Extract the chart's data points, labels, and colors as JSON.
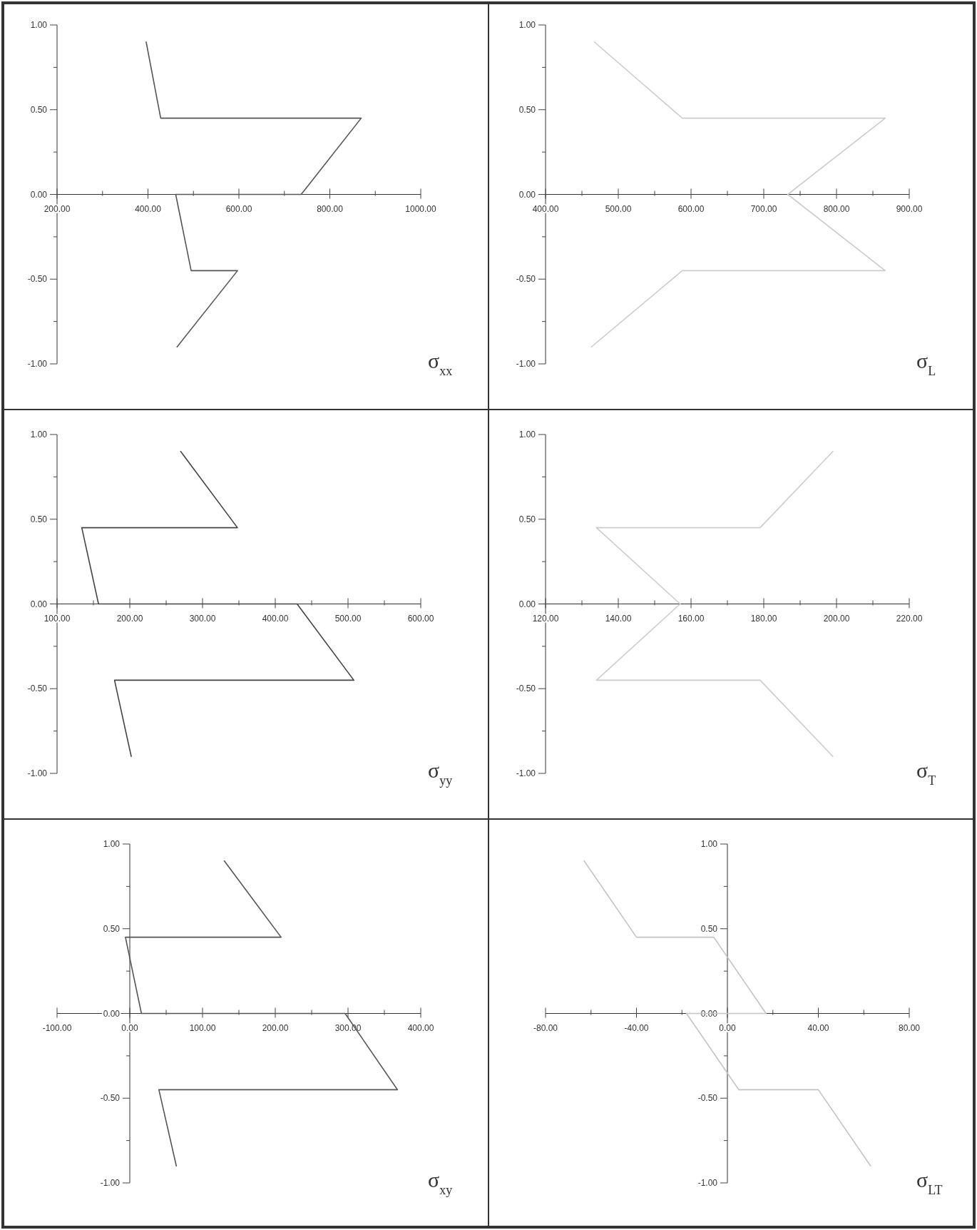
{
  "chart_data": [
    {
      "type": "line",
      "title": "σ$_{xx}$",
      "x": [
        396,
        428,
        869,
        737,
        461,
        495,
        597,
        464
      ],
      "xlim": [
        200,
        1000
      ],
      "xticks": [
        {
          "value": 200,
          "label": "200.00"
        },
        {
          "value": 300,
          "label": null
        },
        {
          "value": 400,
          "label": "400.00"
        },
        {
          "value": 500,
          "label": null
        },
        {
          "value": 600,
          "label": "600.00"
        },
        {
          "value": 700,
          "label": null
        },
        {
          "value": 800,
          "label": "800.00"
        },
        {
          "value": 900,
          "label": null
        },
        {
          "value": 1000,
          "label": "1000.00"
        }
      ],
      "ylim": [
        -1,
        1
      ],
      "yticks": [
        {
          "value": 1,
          "label": "1.00"
        },
        {
          "value": 0.75,
          "label": null
        },
        {
          "value": 0.5,
          "label": "0.50"
        },
        {
          "value": 0.25,
          "label": null
        },
        {
          "value": 0,
          "label": "0.00"
        },
        {
          "value": -0.25,
          "label": null
        },
        {
          "value": -0.5,
          "label": "-0.50"
        },
        {
          "value": -0.75,
          "label": null
        },
        {
          "value": -1,
          "label": "-1.00"
        }
      ],
      "grid": false,
      "series": [
        {
          "color": "#555555",
          "values": [
            0.9,
            0.45,
            0.45,
            0,
            0,
            -0.45,
            -0.45,
            -0.9
          ]
        }
      ]
    },
    {
      "type": "line",
      "title": "σ$_{L}$",
      "x": [
        467,
        588,
        867,
        733,
        733,
        867,
        588,
        463
      ],
      "xlim": [
        400,
        900
      ],
      "xticks": [
        {
          "value": 400,
          "label": "400.00"
        },
        {
          "value": 450,
          "label": null
        },
        {
          "value": 500,
          "label": "500.00"
        },
        {
          "value": 550,
          "label": null
        },
        {
          "value": 600,
          "label": "600.00"
        },
        {
          "value": 650,
          "label": null
        },
        {
          "value": 700,
          "label": "700.00"
        },
        {
          "value": 750,
          "label": null
        },
        {
          "value": 800,
          "label": "800.00"
        },
        {
          "value": 850,
          "label": null
        },
        {
          "value": 900,
          "label": "900.00"
        }
      ],
      "ylim": [
        -1,
        1
      ],
      "yticks": [
        {
          "value": 1,
          "label": "1.00"
        },
        {
          "value": 0.75,
          "label": null
        },
        {
          "value": 0.5,
          "label": "0.50"
        },
        {
          "value": 0.25,
          "label": null
        },
        {
          "value": 0,
          "label": "0.00"
        },
        {
          "value": -0.25,
          "label": null
        },
        {
          "value": -0.5,
          "label": "-0.50"
        },
        {
          "value": -0.75,
          "label": null
        },
        {
          "value": -1,
          "label": "-1.00"
        }
      ],
      "grid": false,
      "series": [
        {
          "color": "#cccccc",
          "values": [
            0.9,
            0.45,
            0.45,
            0,
            0,
            -0.45,
            -0.45,
            -0.9
          ]
        }
      ]
    },
    {
      "type": "line",
      "title": "σ$_{yy}$",
      "x": [
        270,
        348,
        134,
        157,
        430,
        508,
        179,
        202
      ],
      "xlim": [
        100,
        600
      ],
      "xticks": [
        {
          "value": 100,
          "label": "100.00"
        },
        {
          "value": 150,
          "label": null
        },
        {
          "value": 200,
          "label": "200.00"
        },
        {
          "value": 250,
          "label": null
        },
        {
          "value": 300,
          "label": "300.00"
        },
        {
          "value": 350,
          "label": null
        },
        {
          "value": 400,
          "label": "400.00"
        },
        {
          "value": 450,
          "label": null
        },
        {
          "value": 500,
          "label": "500.00"
        },
        {
          "value": 550,
          "label": null
        },
        {
          "value": 600,
          "label": "600.00"
        }
      ],
      "ylim": [
        -1,
        1
      ],
      "yticks": [
        {
          "value": 1,
          "label": "1.00"
        },
        {
          "value": 0.75,
          "label": null
        },
        {
          "value": 0.5,
          "label": "0.50"
        },
        {
          "value": 0.25,
          "label": null
        },
        {
          "value": 0,
          "label": "0.00"
        },
        {
          "value": -0.25,
          "label": null
        },
        {
          "value": -0.5,
          "label": "-0.50"
        },
        {
          "value": -0.75,
          "label": null
        },
        {
          "value": -1,
          "label": "-1.00"
        }
      ],
      "grid": false,
      "series": [
        {
          "color": "#444444",
          "values": [
            0.9,
            0.45,
            0.45,
            0,
            0,
            -0.45,
            -0.45,
            -0.9
          ]
        }
      ]
    },
    {
      "type": "line",
      "title": "σ$_{T}$",
      "x": [
        199,
        179,
        134,
        157,
        157,
        134,
        179,
        199
      ],
      "xlim": [
        120,
        220
      ],
      "xticks": [
        {
          "value": 120,
          "label": "120.00"
        },
        {
          "value": 130,
          "label": null
        },
        {
          "value": 140,
          "label": "140.00"
        },
        {
          "value": 150,
          "label": null
        },
        {
          "value": 160,
          "label": "160.00"
        },
        {
          "value": 170,
          "label": null
        },
        {
          "value": 180,
          "label": "180.00"
        },
        {
          "value": 190,
          "label": null
        },
        {
          "value": 200,
          "label": "200.00"
        },
        {
          "value": 210,
          "label": null
        },
        {
          "value": 220,
          "label": "220.00"
        }
      ],
      "ylim": [
        -1,
        1
      ],
      "yticks": [
        {
          "value": 1,
          "label": "1.00"
        },
        {
          "value": 0.75,
          "label": null
        },
        {
          "value": 0.5,
          "label": "0.50"
        },
        {
          "value": 0.25,
          "label": null
        },
        {
          "value": 0,
          "label": "0.00"
        },
        {
          "value": -0.25,
          "label": null
        },
        {
          "value": -0.5,
          "label": "-0.50"
        },
        {
          "value": -0.75,
          "label": null
        },
        {
          "value": -1,
          "label": "-1.00"
        }
      ],
      "grid": false,
      "series": [
        {
          "color": "#cccccc",
          "values": [
            0.9,
            0.45,
            0.45,
            0,
            0,
            -0.45,
            -0.45,
            -0.9
          ]
        }
      ]
    },
    {
      "type": "line",
      "title": "σ$_{xy}$",
      "x": [
        130,
        208,
        -6,
        16,
        296,
        368,
        40,
        64
      ],
      "xlim": [
        -100,
        400
      ],
      "xticks": [
        {
          "value": -100,
          "label": "-100.00"
        },
        {
          "value": 0,
          "label": "0.00"
        },
        {
          "value": 50,
          "label": null
        },
        {
          "value": 100,
          "label": "100.00"
        },
        {
          "value": 150,
          "label": null
        },
        {
          "value": 200,
          "label": "200.00"
        },
        {
          "value": 250,
          "label": null
        },
        {
          "value": 300,
          "label": "300.00"
        },
        {
          "value": 350,
          "label": null
        },
        {
          "value": 400,
          "label": "400.00"
        }
      ],
      "ylim": [
        -1,
        1
      ],
      "yticks": [
        {
          "value": 1,
          "label": "1.00"
        },
        {
          "value": 0.75,
          "label": null
        },
        {
          "value": 0.5,
          "label": "0.50"
        },
        {
          "value": 0.25,
          "label": null
        },
        {
          "value": 0,
          "label": "0.00"
        },
        {
          "value": -0.25,
          "label": null
        },
        {
          "value": -0.5,
          "label": "-0.50"
        },
        {
          "value": -0.75,
          "label": null
        },
        {
          "value": -1,
          "label": "-1.00"
        }
      ],
      "grid": false,
      "series": [
        {
          "color": "#555555",
          "values": [
            0.9,
            0.45,
            0.45,
            0,
            0,
            -0.45,
            -0.45,
            -0.9
          ]
        }
      ]
    },
    {
      "type": "line",
      "title": "σ$_{LT}$",
      "x": [
        -63,
        -40,
        -6,
        17,
        -18,
        5,
        40,
        63
      ],
      "xlim": [
        -80,
        80
      ],
      "xticks": [
        {
          "value": -80,
          "label": "-80.00"
        },
        {
          "value": -60,
          "label": null
        },
        {
          "value": -40,
          "label": "-40.00"
        },
        {
          "value": -20,
          "label": null
        },
        {
          "value": 0,
          "label": "0.00"
        },
        {
          "value": 20,
          "label": null
        },
        {
          "value": 40,
          "label": "40.00"
        },
        {
          "value": 60,
          "label": null
        },
        {
          "value": 80,
          "label": "80.00"
        }
      ],
      "ylim": [
        -1,
        1
      ],
      "yticks": [
        {
          "value": 1,
          "label": "1.00"
        },
        {
          "value": 0.75,
          "label": null
        },
        {
          "value": 0.5,
          "label": "0.50"
        },
        {
          "value": 0.25,
          "label": null
        },
        {
          "value": 0,
          "label": "0.00"
        },
        {
          "value": -0.25,
          "label": null
        },
        {
          "value": -0.5,
          "label": "-0.50"
        },
        {
          "value": -0.75,
          "label": null
        },
        {
          "value": -1,
          "label": "-1.00"
        }
      ],
      "grid": false,
      "series": [
        {
          "color": "#c4c4c4",
          "values": [
            0.9,
            0.45,
            0.45,
            0,
            0,
            -0.45,
            -0.45,
            -0.9
          ]
        }
      ]
    }
  ]
}
